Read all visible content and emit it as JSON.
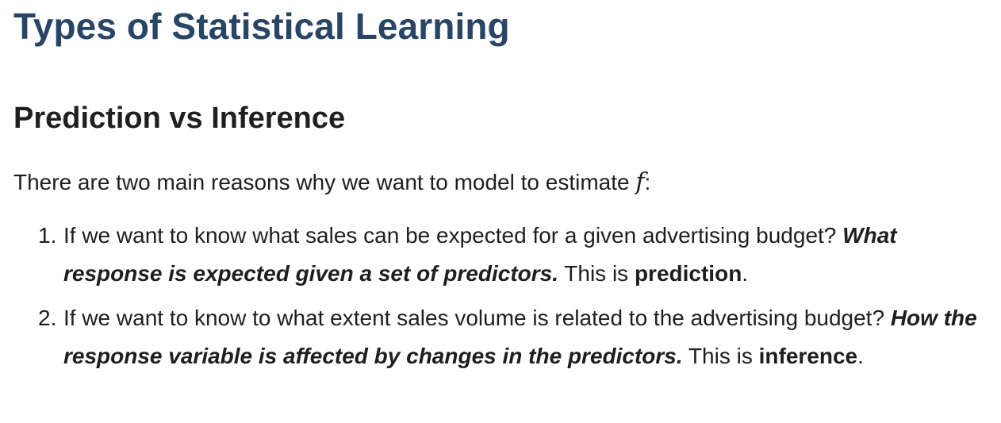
{
  "page": {
    "title": "Types of Statistical Learning",
    "section_heading": "Prediction vs Inference",
    "intro": {
      "text_before": "There are two main reasons why we want to model to estimate ",
      "math_symbol": "f",
      "text_after": ":"
    },
    "items": [
      {
        "number": "1.",
        "question": "If we want to know what sales can be expected for a given advertising budget? ",
        "emphasis": "What response is expected given a set of predictors.",
        "lead": " This is ",
        "term": "prediction",
        "end": "."
      },
      {
        "number": "2.",
        "question": "If we want to know to what extent sales volume is related to the advertising budget? ",
        "emphasis": "How the response variable is affected by changes in the predictors.",
        "lead": " This is ",
        "term": "inference",
        "end": "."
      }
    ]
  }
}
